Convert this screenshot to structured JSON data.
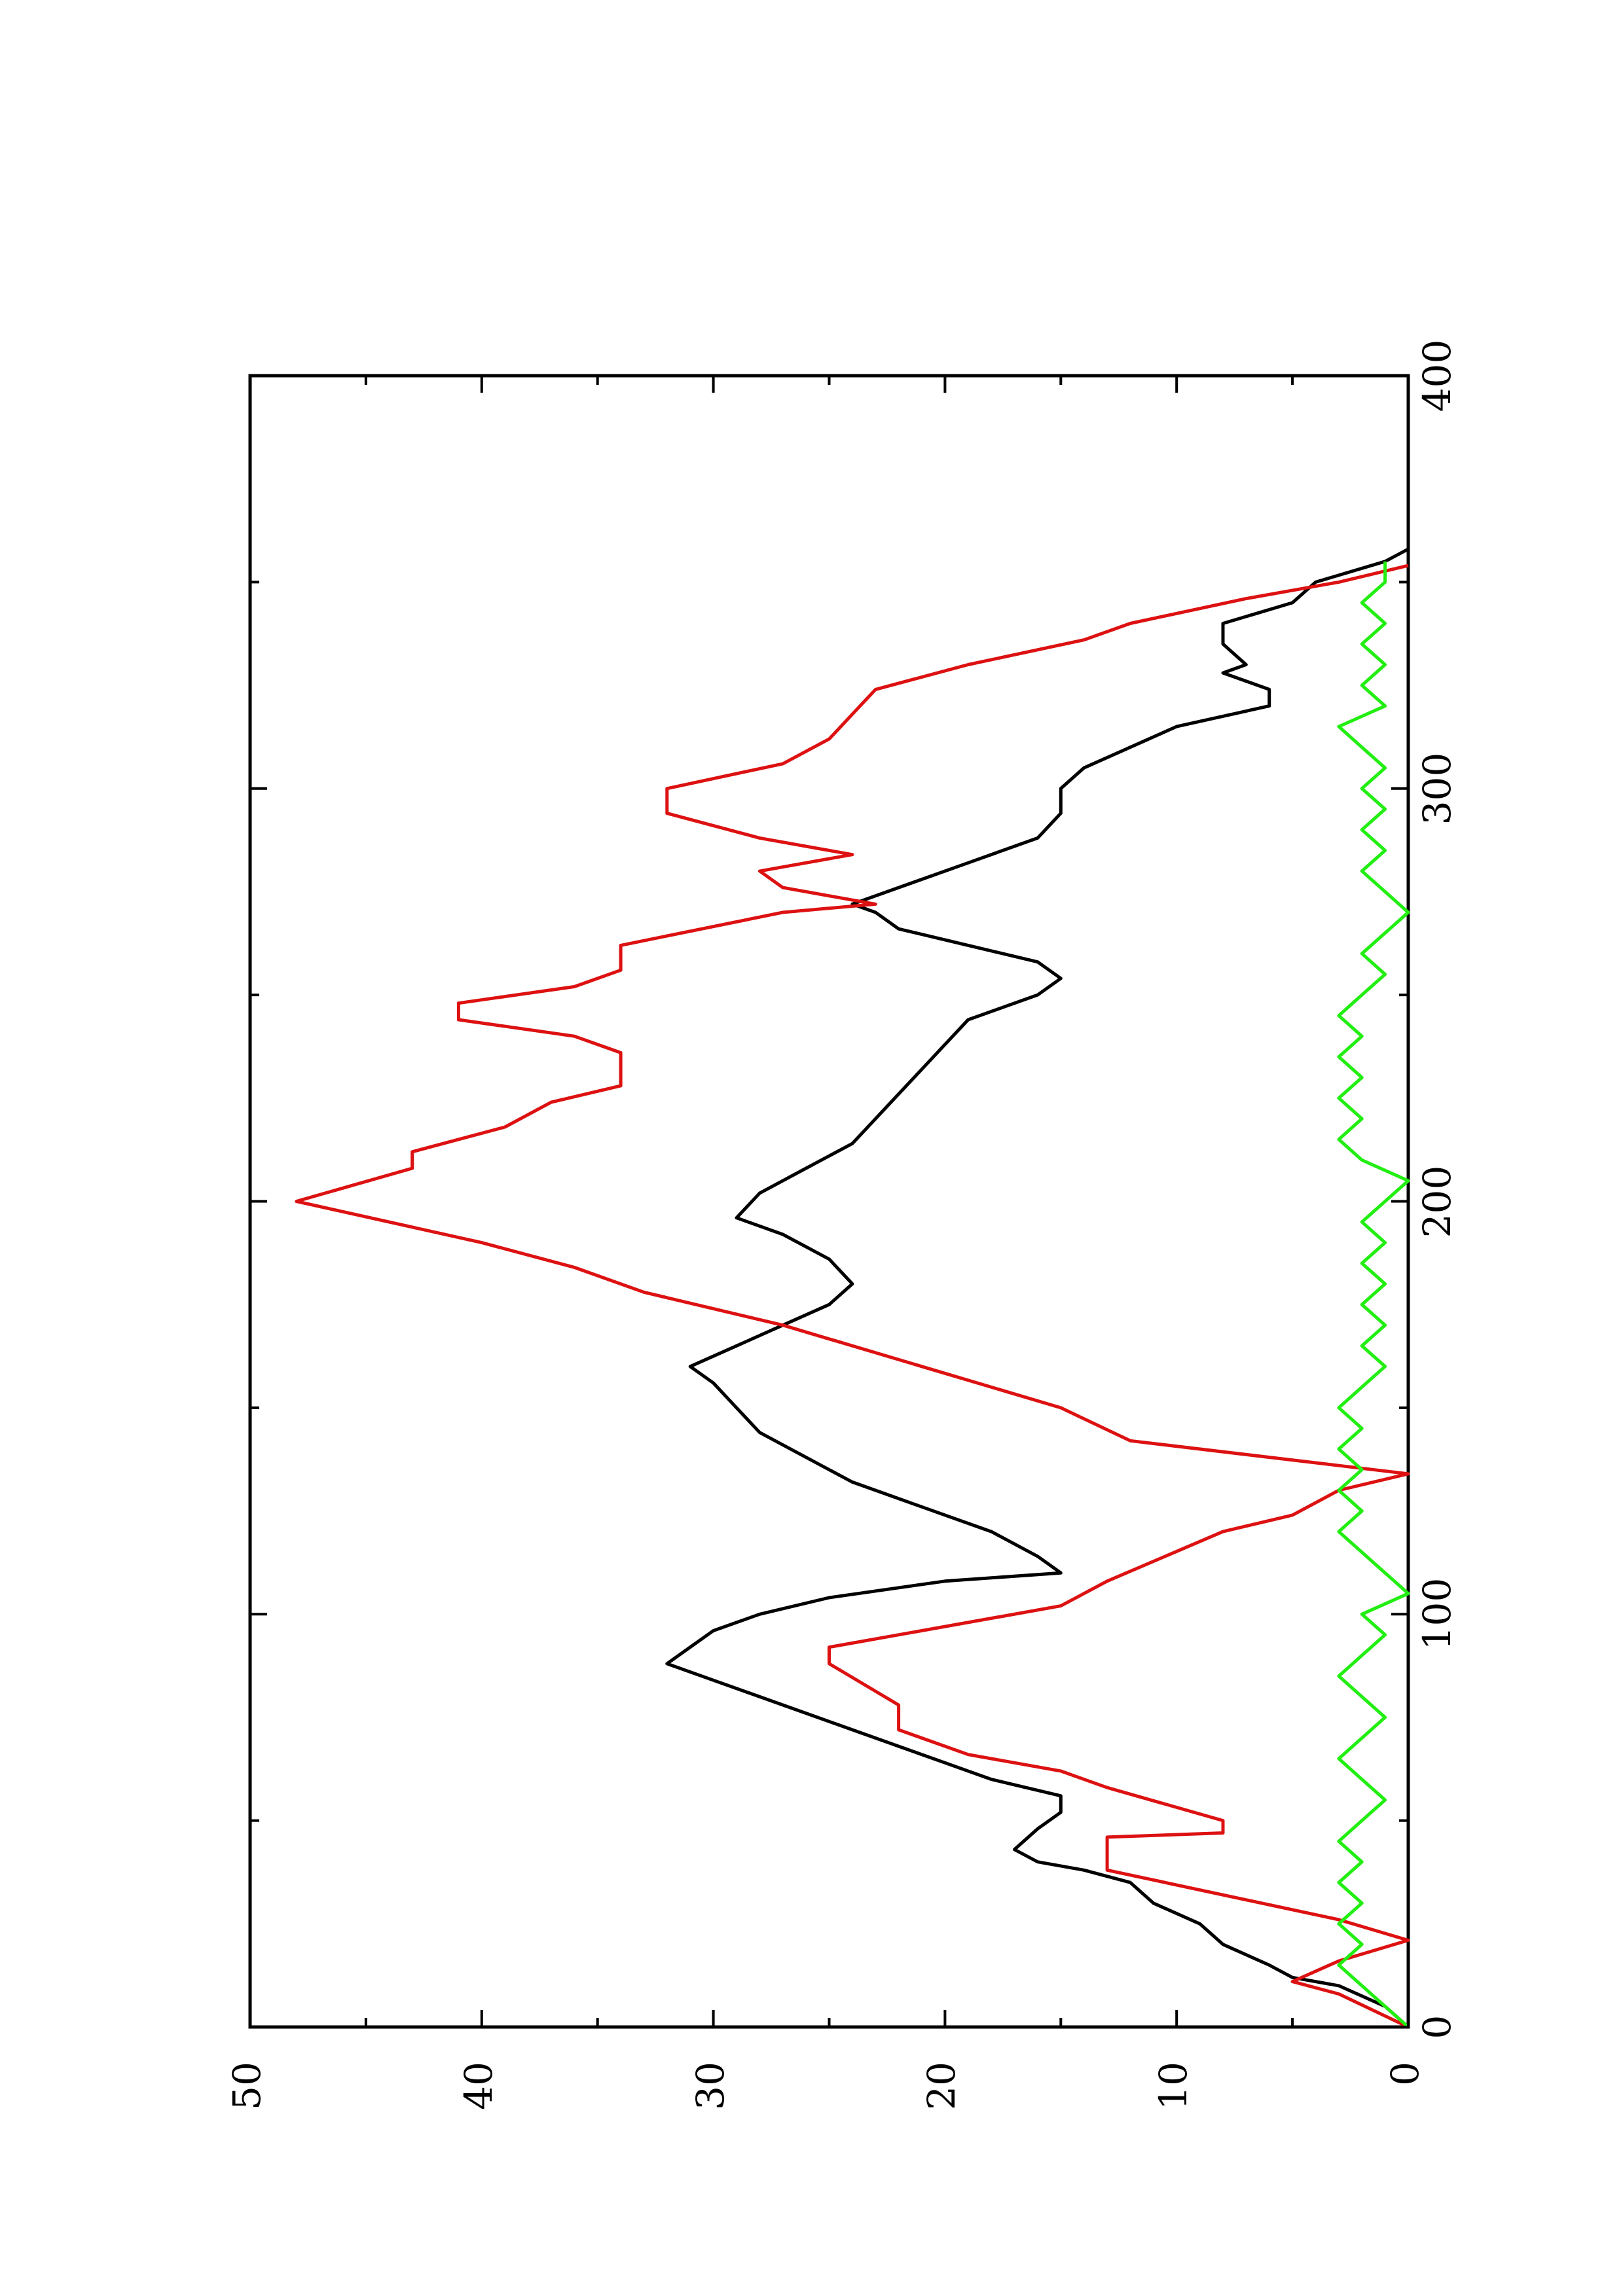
{
  "chart_data": {
    "type": "line",
    "title": "",
    "xlabel": "",
    "ylabel": "",
    "orientation": "rotated-90-ccw",
    "xlim": [
      0,
      400
    ],
    "ylim": [
      0,
      50
    ],
    "x_ticks": [
      "0",
      "100",
      "200",
      "300",
      "400"
    ],
    "y_ticks": [
      "0",
      "10",
      "20",
      "30",
      "40",
      "50"
    ],
    "grid": false,
    "legend": "none",
    "series": [
      {
        "color": "#000000",
        "points": [
          [
            0,
            0
          ],
          [
            5,
            1
          ],
          [
            10,
            3
          ],
          [
            12,
            5
          ],
          [
            15,
            6
          ],
          [
            20,
            8
          ],
          [
            25,
            9
          ],
          [
            30,
            11
          ],
          [
            35,
            12
          ],
          [
            38,
            14
          ],
          [
            40,
            16
          ],
          [
            43,
            17
          ],
          [
            48,
            16
          ],
          [
            52,
            15
          ],
          [
            56,
            15
          ],
          [
            60,
            18
          ],
          [
            64,
            20
          ],
          [
            68,
            22
          ],
          [
            72,
            24
          ],
          [
            76,
            26
          ],
          [
            80,
            28
          ],
          [
            84,
            30
          ],
          [
            88,
            32
          ],
          [
            92,
            31
          ],
          [
            96,
            30
          ],
          [
            100,
            28
          ],
          [
            104,
            25
          ],
          [
            108,
            20
          ],
          [
            110,
            15
          ],
          [
            114,
            16
          ],
          [
            120,
            18
          ],
          [
            126,
            21
          ],
          [
            132,
            24
          ],
          [
            138,
            26
          ],
          [
            144,
            28
          ],
          [
            150,
            29
          ],
          [
            156,
            30
          ],
          [
            160,
            31
          ],
          [
            165,
            29
          ],
          [
            170,
            27
          ],
          [
            175,
            25
          ],
          [
            180,
            24
          ],
          [
            186,
            25
          ],
          [
            192,
            27
          ],
          [
            196,
            29
          ],
          [
            202,
            28
          ],
          [
            208,
            26
          ],
          [
            214,
            24
          ],
          [
            220,
            23
          ],
          [
            226,
            22
          ],
          [
            232,
            21
          ],
          [
            238,
            20
          ],
          [
            244,
            19
          ],
          [
            250,
            16
          ],
          [
            254,
            15
          ],
          [
            258,
            16
          ],
          [
            262,
            19
          ],
          [
            266,
            22
          ],
          [
            270,
            23
          ],
          [
            272,
            24
          ],
          [
            276,
            22
          ],
          [
            282,
            19
          ],
          [
            288,
            16
          ],
          [
            294,
            15
          ],
          [
            300,
            15
          ],
          [
            305,
            14
          ],
          [
            310,
            12
          ],
          [
            315,
            10
          ],
          [
            320,
            6
          ],
          [
            324,
            6
          ],
          [
            328,
            8
          ],
          [
            330,
            7
          ],
          [
            335,
            8
          ],
          [
            340,
            8
          ],
          [
            345,
            5
          ],
          [
            350,
            4
          ],
          [
            355,
            1
          ],
          [
            358,
            0
          ]
        ]
      },
      {
        "color": "#dd1111",
        "points": [
          [
            0,
            0
          ],
          [
            8,
            3
          ],
          [
            11,
            5
          ],
          [
            16,
            3
          ],
          [
            21,
            0
          ],
          [
            26,
            3
          ],
          [
            38,
            13
          ],
          [
            46,
            13
          ],
          [
            47,
            8
          ],
          [
            50,
            8
          ],
          [
            58,
            13
          ],
          [
            62,
            15
          ],
          [
            66,
            19
          ],
          [
            72,
            22
          ],
          [
            78,
            22
          ],
          [
            88,
            25
          ],
          [
            92,
            25
          ],
          [
            102,
            15
          ],
          [
            108,
            13
          ],
          [
            120,
            8
          ],
          [
            124,
            5
          ],
          [
            130,
            3
          ],
          [
            134,
            0
          ],
          [
            136,
            3
          ],
          [
            142,
            12
          ],
          [
            150,
            15
          ],
          [
            160,
            21
          ],
          [
            170,
            27
          ],
          [
            178,
            33
          ],
          [
            184,
            36
          ],
          [
            190,
            40
          ],
          [
            200,
            48
          ],
          [
            208,
            43
          ],
          [
            212,
            43
          ],
          [
            218,
            39
          ],
          [
            224,
            37
          ],
          [
            228,
            34
          ],
          [
            236,
            34
          ],
          [
            240,
            36
          ],
          [
            244,
            41
          ],
          [
            248,
            41
          ],
          [
            252,
            36
          ],
          [
            256,
            34
          ],
          [
            262,
            34
          ],
          [
            270,
            27
          ],
          [
            272,
            23
          ],
          [
            276,
            27
          ],
          [
            280,
            28
          ],
          [
            284,
            24
          ],
          [
            288,
            28
          ],
          [
            294,
            32
          ],
          [
            300,
            32
          ],
          [
            306,
            27
          ],
          [
            312,
            25
          ],
          [
            318,
            24
          ],
          [
            324,
            23
          ],
          [
            330,
            19
          ],
          [
            336,
            14
          ],
          [
            340,
            12
          ],
          [
            346,
            7
          ],
          [
            350,
            3
          ],
          [
            354,
            0
          ]
        ]
      },
      {
        "color": "#22ee11",
        "points": [
          [
            0,
            0
          ],
          [
            5,
            1
          ],
          [
            10,
            2
          ],
          [
            15,
            3
          ],
          [
            20,
            2
          ],
          [
            25,
            3
          ],
          [
            30,
            2
          ],
          [
            35,
            3
          ],
          [
            40,
            2
          ],
          [
            45,
            3
          ],
          [
            50,
            2
          ],
          [
            55,
            1
          ],
          [
            60,
            2
          ],
          [
            65,
            3
          ],
          [
            70,
            2
          ],
          [
            75,
            1
          ],
          [
            80,
            2
          ],
          [
            85,
            3
          ],
          [
            90,
            2
          ],
          [
            95,
            1
          ],
          [
            100,
            2
          ],
          [
            105,
            0
          ],
          [
            110,
            1
          ],
          [
            115,
            2
          ],
          [
            120,
            3
          ],
          [
            125,
            2
          ],
          [
            130,
            3
          ],
          [
            135,
            2
          ],
          [
            140,
            3
          ],
          [
            145,
            2
          ],
          [
            150,
            3
          ],
          [
            155,
            2
          ],
          [
            160,
            1
          ],
          [
            165,
            2
          ],
          [
            170,
            1
          ],
          [
            175,
            2
          ],
          [
            180,
            1
          ],
          [
            185,
            2
          ],
          [
            190,
            1
          ],
          [
            195,
            2
          ],
          [
            200,
            1
          ],
          [
            205,
            0
          ],
          [
            210,
            2
          ],
          [
            215,
            3
          ],
          [
            220,
            2
          ],
          [
            225,
            3
          ],
          [
            230,
            2
          ],
          [
            235,
            3
          ],
          [
            240,
            2
          ],
          [
            245,
            3
          ],
          [
            250,
            2
          ],
          [
            255,
            1
          ],
          [
            260,
            2
          ],
          [
            265,
            1
          ],
          [
            270,
            0
          ],
          [
            275,
            1
          ],
          [
            280,
            2
          ],
          [
            285,
            1
          ],
          [
            290,
            2
          ],
          [
            295,
            1
          ],
          [
            300,
            2
          ],
          [
            305,
            1
          ],
          [
            310,
            2
          ],
          [
            315,
            3
          ],
          [
            320,
            1
          ],
          [
            325,
            2
          ],
          [
            330,
            1
          ],
          [
            335,
            2
          ],
          [
            340,
            1
          ],
          [
            345,
            2
          ],
          [
            350,
            1
          ],
          [
            355,
            1
          ]
        ]
      }
    ]
  }
}
